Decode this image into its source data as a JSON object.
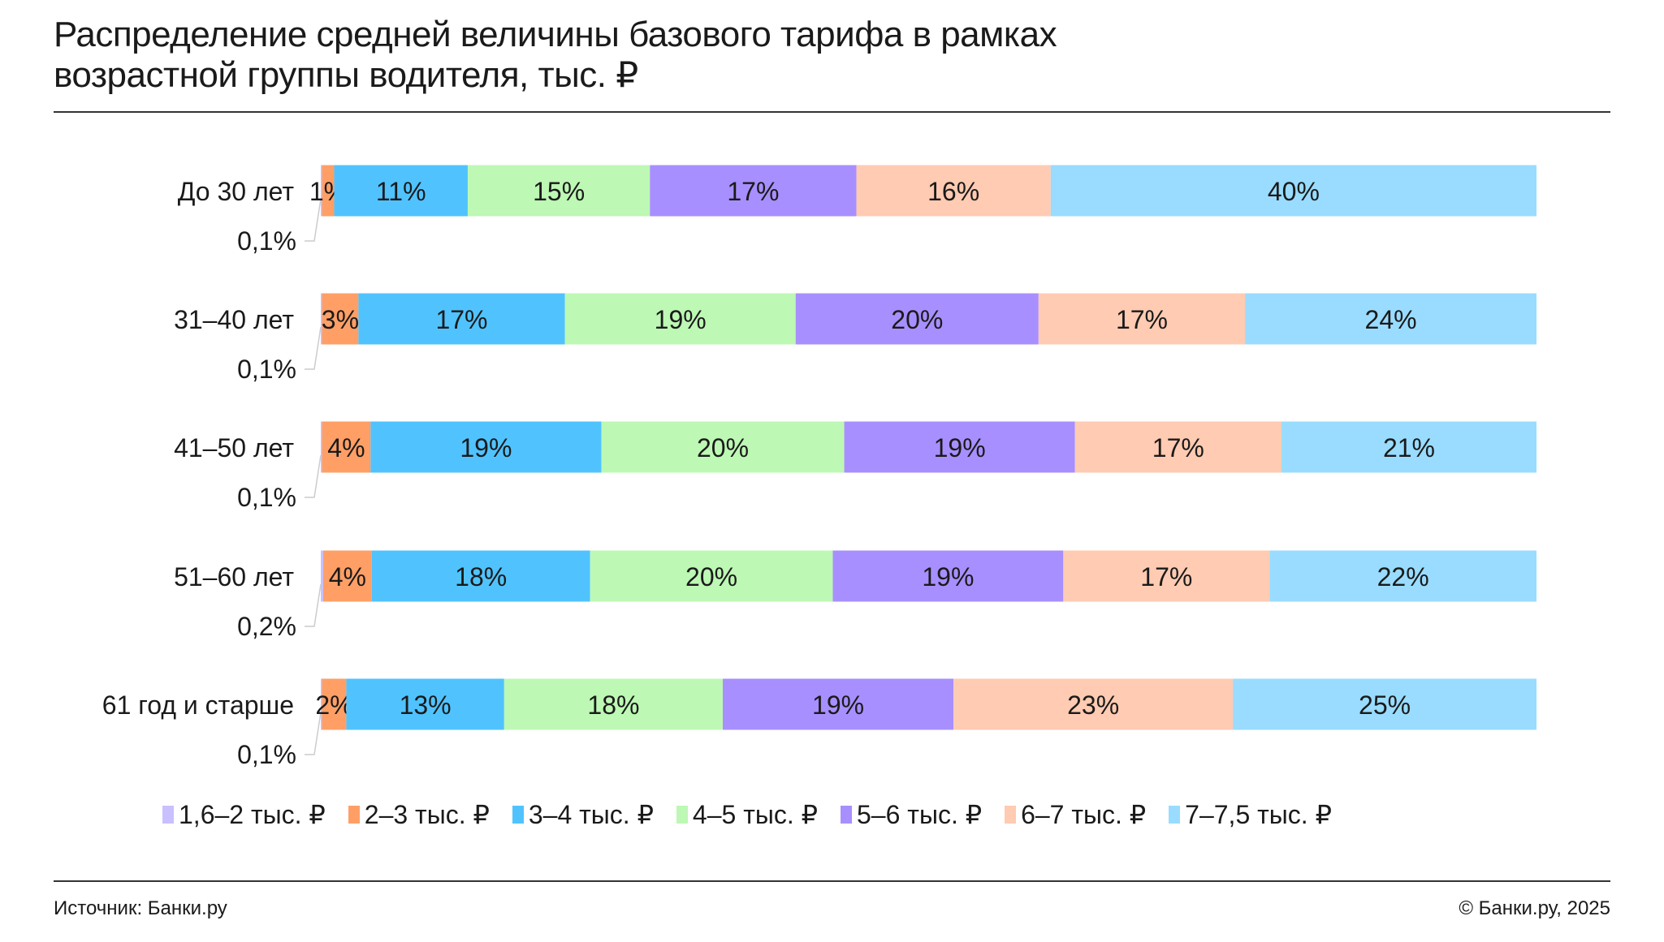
{
  "title_line1": "Распределение средней величины базового тарифа в рамках",
  "title_line2": "возрастной группы водителя, тыс. ₽",
  "footer": {
    "source": "Источник: Банки.ру",
    "copyright": "© Банки.ру, 2025"
  },
  "chart_data": {
    "type": "bar",
    "orientation": "horizontal",
    "stacked": true,
    "title": "Распределение средней величины базового тарифа в рамках возрастной группы водителя, тыс. ₽",
    "categories": [
      "До 30 лет",
      "31–40 лет",
      "41–50 лет",
      "51–60 лет",
      "61 год и старше"
    ],
    "series": [
      {
        "name": "1,6–2 тыс. ₽",
        "color": "#c8c0ff",
        "values": [
          0.1,
          0.1,
          0.1,
          0.2,
          0.1
        ],
        "labels": [
          "0,1%",
          "0,1%",
          "0,1%",
          "0,2%",
          "0,1%"
        ]
      },
      {
        "name": "2–3 тыс. ₽",
        "color": "#ff9f66",
        "values": [
          1,
          3,
          4,
          4,
          2
        ],
        "labels": [
          "1%",
          "3%",
          "4%",
          "4%",
          "2%"
        ]
      },
      {
        "name": "3–4 тыс. ₽",
        "color": "#50c3ff",
        "values": [
          11,
          17,
          19,
          18,
          13
        ],
        "labels": [
          "11%",
          "17%",
          "19%",
          "18%",
          "13%"
        ]
      },
      {
        "name": "4–5 тыс. ₽",
        "color": "#bdf8b4",
        "values": [
          15,
          19,
          20,
          20,
          18
        ],
        "labels": [
          "15%",
          "19%",
          "20%",
          "20%",
          "18%"
        ]
      },
      {
        "name": "5–6 тыс. ₽",
        "color": "#a88fff",
        "values": [
          17,
          20,
          19,
          19,
          19
        ],
        "labels": [
          "17%",
          "20%",
          "19%",
          "19%",
          "19%"
        ]
      },
      {
        "name": "6–7 тыс. ₽",
        "color": "#ffcbb2",
        "values": [
          16,
          17,
          17,
          17,
          23
        ],
        "labels": [
          "16%",
          "17%",
          "17%",
          "17%",
          "23%"
        ]
      },
      {
        "name": "7–7,5 тыс. ₽",
        "color": "#99dcff",
        "values": [
          40,
          24,
          21,
          22,
          25
        ],
        "labels": [
          "40%",
          "24%",
          "21%",
          "22%",
          "25%"
        ]
      }
    ],
    "xlim": [
      0,
      100
    ],
    "legend": "bottom"
  }
}
